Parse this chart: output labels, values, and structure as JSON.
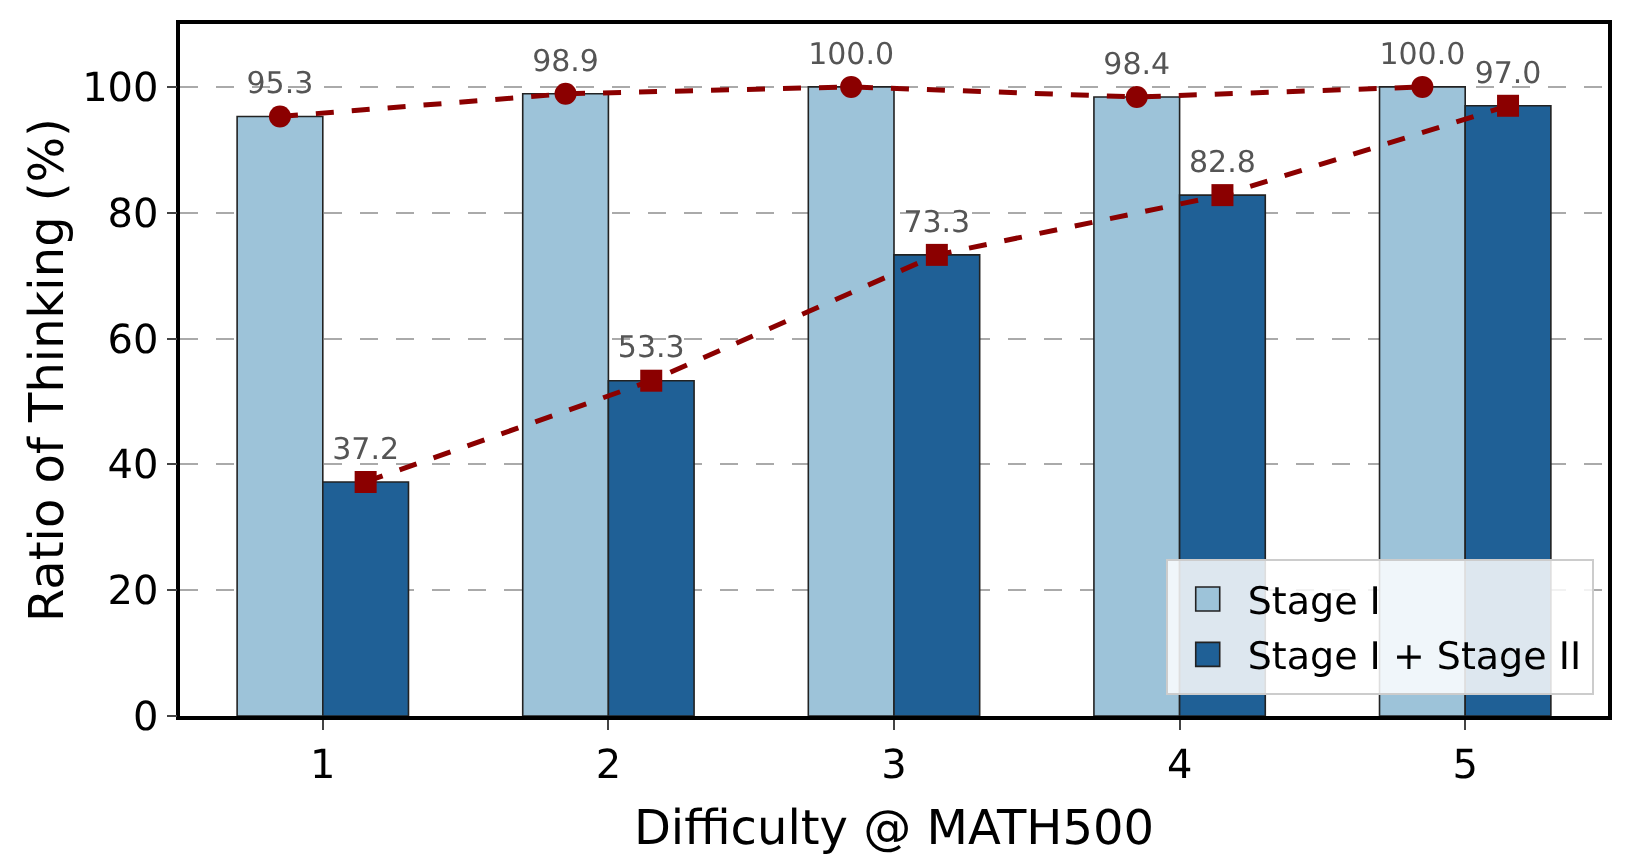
{
  "chart_data": {
    "type": "bar",
    "xlabel": "Difficulty @ MATH500",
    "ylabel": "Ratio of Thinking (%)",
    "xlim": [
      0.5,
      5.5
    ],
    "xticks": [
      1,
      2,
      3,
      4,
      5
    ],
    "series": [
      {
        "name": "Stage I",
        "color": "#9dc3d9",
        "x": [
          0.85,
          1.85,
          2.85,
          3.85,
          4.85
        ],
        "values": [
          95.3,
          98.9,
          100.0,
          98.4,
          100.0
        ]
      },
      {
        "name": "Stage I + Stage II",
        "color": "#1f6096",
        "x": [
          1.15,
          2.15,
          3.15,
          4.15,
          5.15
        ],
        "values": [
          37.2,
          53.3,
          73.3,
          82.8,
          97.0
        ]
      },
      {
        "type": "line",
        "color": "#8b0000",
        "marker": "circle",
        "line_style": "dashed",
        "x": [
          0.85,
          1.85,
          2.85,
          3.85,
          4.85
        ],
        "values": [
          95.3,
          98.9,
          100.0,
          98.4,
          100.0
        ],
        "value_labels": [
          "95.3",
          "98.9",
          "100.0",
          "98.4",
          "100.0"
        ]
      },
      {
        "type": "line",
        "color": "#8b0000",
        "marker": "square",
        "line_style": "dashed",
        "x": [
          1.15,
          2.15,
          3.15,
          4.15,
          5.15
        ],
        "values": [
          37.2,
          53.3,
          73.3,
          82.8,
          97.0
        ],
        "value_labels": [
          "37.2",
          "53.3",
          "73.3",
          "82.8",
          "97.0"
        ]
      }
    ],
    "ylim": [
      0,
      110
    ],
    "yticks": [
      0,
      20,
      40,
      60,
      80,
      100
    ],
    "grid": "y",
    "legend": "bottom right"
  }
}
